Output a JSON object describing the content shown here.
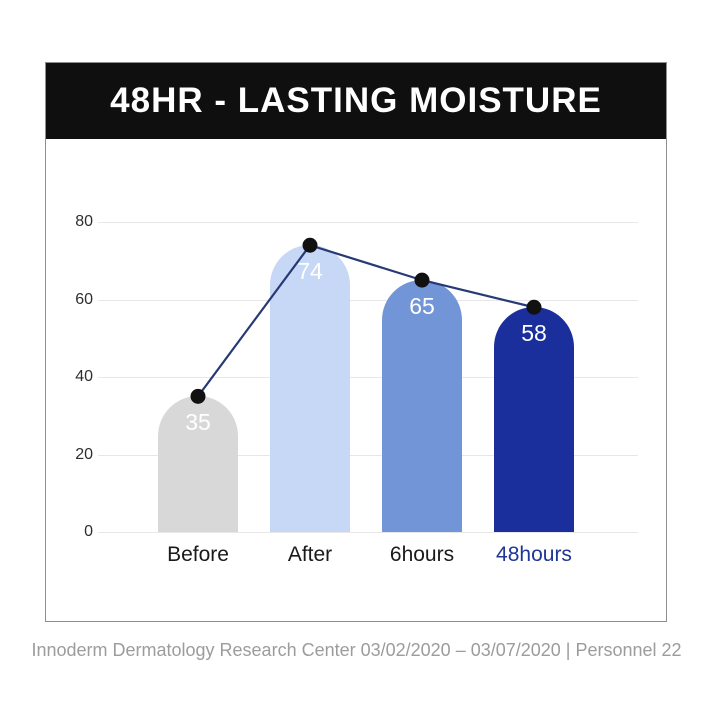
{
  "banner": {
    "title": "48HR - LASTING MOISTURE"
  },
  "footer": {
    "text": "Innoderm Dermatology Research Center 03/02/2020 – 03/07/2020 | Personnel 22"
  },
  "chart_data": {
    "type": "bar",
    "title": "48HR - LASTING MOISTURE",
    "categories": [
      "Before",
      "After",
      "6hours",
      "48hours"
    ],
    "values": [
      35,
      74,
      65,
      58
    ],
    "value_labels": [
      "35",
      "74",
      "65",
      "58"
    ],
    "yticks": [
      0,
      20,
      40,
      60,
      80
    ],
    "ytick_labels": [
      "0",
      "20",
      "40",
      "60",
      "80"
    ],
    "ylim": [
      0,
      80
    ],
    "xlabel": "",
    "ylabel": "",
    "grid": true,
    "legend": "none",
    "overlay": "line-with-dots",
    "colors": {
      "bars": [
        "#d8d8d8",
        "#c7d7f6",
        "#7195d7",
        "#1a2f9c"
      ],
      "category_labels": [
        "#1a1a1a",
        "#1a1a1a",
        "#1a1a1a",
        "#1e3696"
      ],
      "value_label": "#ffffff",
      "line": "#263a75",
      "dot": "#111111",
      "grid": "#e7e7e7",
      "banner_bg": "#0f0f0f",
      "banner_text": "#ffffff"
    }
  }
}
